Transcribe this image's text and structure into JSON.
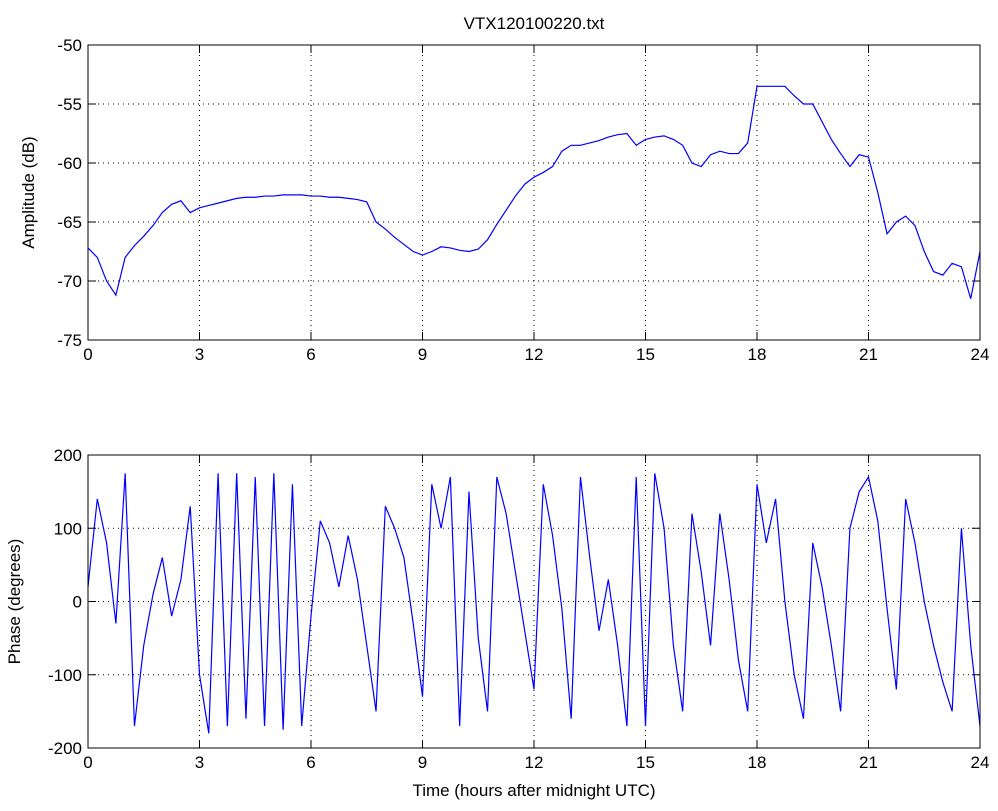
{
  "chart_data": [
    {
      "type": "line",
      "title": "VTX120100220.txt",
      "ylabel": "Amplitude (dB)",
      "color": "#0000ff",
      "grid": true,
      "xlim": [
        0,
        24
      ],
      "xticks": [
        0,
        3,
        6,
        9,
        12,
        15,
        18,
        21,
        24
      ],
      "ylim": [
        -75,
        -50
      ],
      "yticks": [
        -75,
        -70,
        -65,
        -60,
        -55,
        -50
      ],
      "x": [
        0,
        0.25,
        0.5,
        0.75,
        1,
        1.25,
        1.5,
        1.75,
        2,
        2.25,
        2.5,
        2.75,
        3,
        3.25,
        3.5,
        3.75,
        4,
        4.25,
        4.5,
        4.75,
        5,
        5.25,
        5.5,
        5.75,
        6,
        6.25,
        6.5,
        6.75,
        7,
        7.25,
        7.5,
        7.75,
        8,
        8.25,
        8.5,
        8.75,
        9,
        9.25,
        9.5,
        9.75,
        10,
        10.25,
        10.5,
        10.75,
        11,
        11.25,
        11.5,
        11.75,
        12,
        12.25,
        12.5,
        12.75,
        13,
        13.25,
        13.5,
        13.75,
        14,
        14.25,
        14.5,
        14.75,
        15,
        15.25,
        15.5,
        15.75,
        16,
        16.25,
        16.5,
        16.75,
        17,
        17.25,
        17.5,
        17.75,
        18,
        18.25,
        18.5,
        18.75,
        19,
        19.25,
        19.5,
        19.75,
        20,
        20.25,
        20.5,
        20.75,
        21,
        21.25,
        21.5,
        21.75,
        22,
        22.25,
        22.5,
        22.75,
        23,
        23.25,
        23.5,
        23.75,
        24
      ],
      "values": [
        -67.2,
        -68,
        -70,
        -71.2,
        -68,
        -67,
        -66.2,
        -65.3,
        -64.2,
        -63.5,
        -63.2,
        -64.2,
        -63.8,
        -63.6,
        -63.4,
        -63.2,
        -63,
        -62.9,
        -62.9,
        -62.8,
        -62.8,
        -62.7,
        -62.7,
        -62.7,
        -62.8,
        -62.8,
        -62.9,
        -62.9,
        -63,
        -63.1,
        -63.3,
        -65,
        -65.6,
        -66.3,
        -66.9,
        -67.5,
        -67.8,
        -67.5,
        -67.1,
        -67.2,
        -67.4,
        -67.5,
        -67.3,
        -66.5,
        -65.2,
        -64,
        -62.8,
        -61.8,
        -61.2,
        -60.8,
        -60.3,
        -59,
        -58.5,
        -58.5,
        -58.3,
        -58.1,
        -57.8,
        -57.6,
        -57.5,
        -58.5,
        -58,
        -57.8,
        -57.7,
        -58,
        -58.5,
        -60,
        -60.3,
        -59.3,
        -59,
        -59.2,
        -59.2,
        -58.3,
        -53.5,
        -53.5,
        -53.5,
        -53.5,
        -54.3,
        -55,
        -55,
        -56.5,
        -58,
        -59.2,
        -60.3,
        -59.3,
        -59.5,
        -62.5,
        -66,
        -65,
        -64.5,
        -65.3,
        -67.5,
        -69.2,
        -69.5,
        -68.5,
        -68.8,
        -71.5,
        -67.5
      ]
    },
    {
      "type": "line",
      "xlabel": "Time (hours after midnight UTC)",
      "ylabel": "Phase (degrees)",
      "color": "#0000ff",
      "grid": true,
      "xlim": [
        0,
        24
      ],
      "xticks": [
        0,
        3,
        6,
        9,
        12,
        15,
        18,
        21,
        24
      ],
      "ylim": [
        -200,
        200
      ],
      "yticks": [
        -200,
        -100,
        0,
        100,
        200
      ],
      "x": [
        0,
        0.25,
        0.5,
        0.75,
        1,
        1.25,
        1.5,
        1.75,
        2,
        2.25,
        2.5,
        2.75,
        3,
        3.25,
        3.5,
        3.75,
        4,
        4.25,
        4.5,
        4.75,
        5,
        5.25,
        5.5,
        5.75,
        6,
        6.25,
        6.5,
        6.75,
        7,
        7.25,
        7.5,
        7.75,
        8,
        8.25,
        8.5,
        8.75,
        9,
        9.25,
        9.5,
        9.75,
        10,
        10.25,
        10.5,
        10.75,
        11,
        11.25,
        11.5,
        11.75,
        12,
        12.25,
        12.5,
        12.75,
        13,
        13.25,
        13.5,
        13.75,
        14,
        14.25,
        14.5,
        14.75,
        15,
        15.25,
        15.5,
        15.75,
        16,
        16.25,
        16.5,
        16.75,
        17,
        17.25,
        17.5,
        17.75,
        18,
        18.25,
        18.5,
        18.75,
        19,
        19.25,
        19.5,
        19.75,
        20,
        20.25,
        20.5,
        20.75,
        21,
        21.25,
        21.5,
        21.75,
        22,
        22.25,
        22.5,
        22.75,
        23,
        23.25,
        23.5,
        23.75,
        24
      ],
      "values": [
        20,
        140,
        80,
        -30,
        175,
        -170,
        -60,
        10,
        60,
        -20,
        30,
        130,
        -100,
        -180,
        175,
        -170,
        175,
        -160,
        170,
        -170,
        175,
        -175,
        160,
        -170,
        -20,
        110,
        80,
        20,
        90,
        30,
        -60,
        -150,
        130,
        100,
        60,
        -30,
        -130,
        160,
        100,
        170,
        -170,
        150,
        -50,
        -150,
        170,
        120,
        40,
        -40,
        -120,
        160,
        90,
        -10,
        -160,
        170,
        60,
        -40,
        30,
        -60,
        -170,
        170,
        -170,
        175,
        100,
        -60,
        -150,
        120,
        40,
        -60,
        120,
        30,
        -80,
        -150,
        160,
        80,
        140,
        0,
        -100,
        -160,
        80,
        20,
        -60,
        -150,
        100,
        150,
        170,
        110,
        -10,
        -120,
        140,
        80,
        0,
        -60,
        -110,
        -150,
        100,
        -60,
        -170
      ]
    }
  ]
}
